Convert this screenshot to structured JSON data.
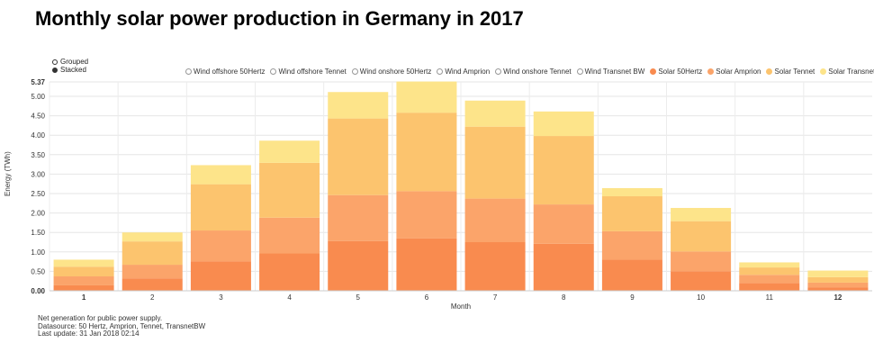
{
  "title": "Monthly solar power production in Germany in 2017",
  "controls": {
    "grouped_label": "Grouped",
    "stacked_label": "Stacked",
    "selected": "Stacked"
  },
  "legend": [
    {
      "label": "Wind offshore 50Hertz",
      "color": "#ffffff",
      "active": false
    },
    {
      "label": "Wind offshore Tennet",
      "color": "#ffffff",
      "active": false
    },
    {
      "label": "Wind onshore 50Hertz",
      "color": "#ffffff",
      "active": false
    },
    {
      "label": "Wind Amprion",
      "color": "#ffffff",
      "active": false
    },
    {
      "label": "Wind onshore Tennet",
      "color": "#ffffff",
      "active": false
    },
    {
      "label": "Wind Transnet BW",
      "color": "#ffffff",
      "active": false
    },
    {
      "label": "Solar 50Hertz",
      "color": "#f98b4f",
      "active": true
    },
    {
      "label": "Solar Amprion",
      "color": "#fba46a",
      "active": true
    },
    {
      "label": "Solar Tennet",
      "color": "#fcc46e",
      "active": true
    },
    {
      "label": "Solar Transnet BW",
      "color": "#fde48a",
      "active": true
    }
  ],
  "footnotes": [
    "Net generation for public power supply.",
    "Datasource: 50 Hertz, Amprion, Tennet, TransnetBW",
    "Last update: 31 Jan 2018 02:14"
  ],
  "chart_data": {
    "type": "bar",
    "stacked": true,
    "categories": [
      "1",
      "2",
      "3",
      "4",
      "5",
      "6",
      "7",
      "8",
      "9",
      "10",
      "11",
      "12"
    ],
    "bold_categories": [
      "1",
      "12"
    ],
    "xlabel": "Month",
    "ylabel": "Energy (TWh)",
    "ylim": [
      0,
      5.37
    ],
    "yticks": [
      "0.00",
      "0.50",
      "1.00",
      "1.50",
      "2.00",
      "2.50",
      "3.00",
      "3.50",
      "4.00",
      "4.50",
      "5.00",
      "5.37"
    ],
    "bold_yticks": [
      "0.00",
      "5.37"
    ],
    "grid": true,
    "legend_position": "top-right",
    "series": [
      {
        "name": "Solar 50Hertz",
        "color": "#f98b4f",
        "values": [
          0.14,
          0.32,
          0.76,
          0.96,
          1.28,
          1.35,
          1.25,
          1.21,
          0.8,
          0.5,
          0.2,
          0.09
        ]
      },
      {
        "name": "Solar Amprion",
        "color": "#fba46a",
        "values": [
          0.23,
          0.35,
          0.79,
          0.92,
          1.18,
          1.21,
          1.12,
          1.01,
          0.73,
          0.51,
          0.21,
          0.12
        ]
      },
      {
        "name": "Solar Tennet",
        "color": "#fcc46e",
        "values": [
          0.25,
          0.6,
          1.19,
          1.41,
          1.97,
          2.02,
          1.85,
          1.76,
          0.9,
          0.78,
          0.19,
          0.14
        ]
      },
      {
        "name": "Solar Transnet BW",
        "color": "#fde48a",
        "values": [
          0.18,
          0.23,
          0.49,
          0.57,
          0.68,
          0.8,
          0.67,
          0.63,
          0.21,
          0.34,
          0.13,
          0.17
        ]
      }
    ]
  }
}
